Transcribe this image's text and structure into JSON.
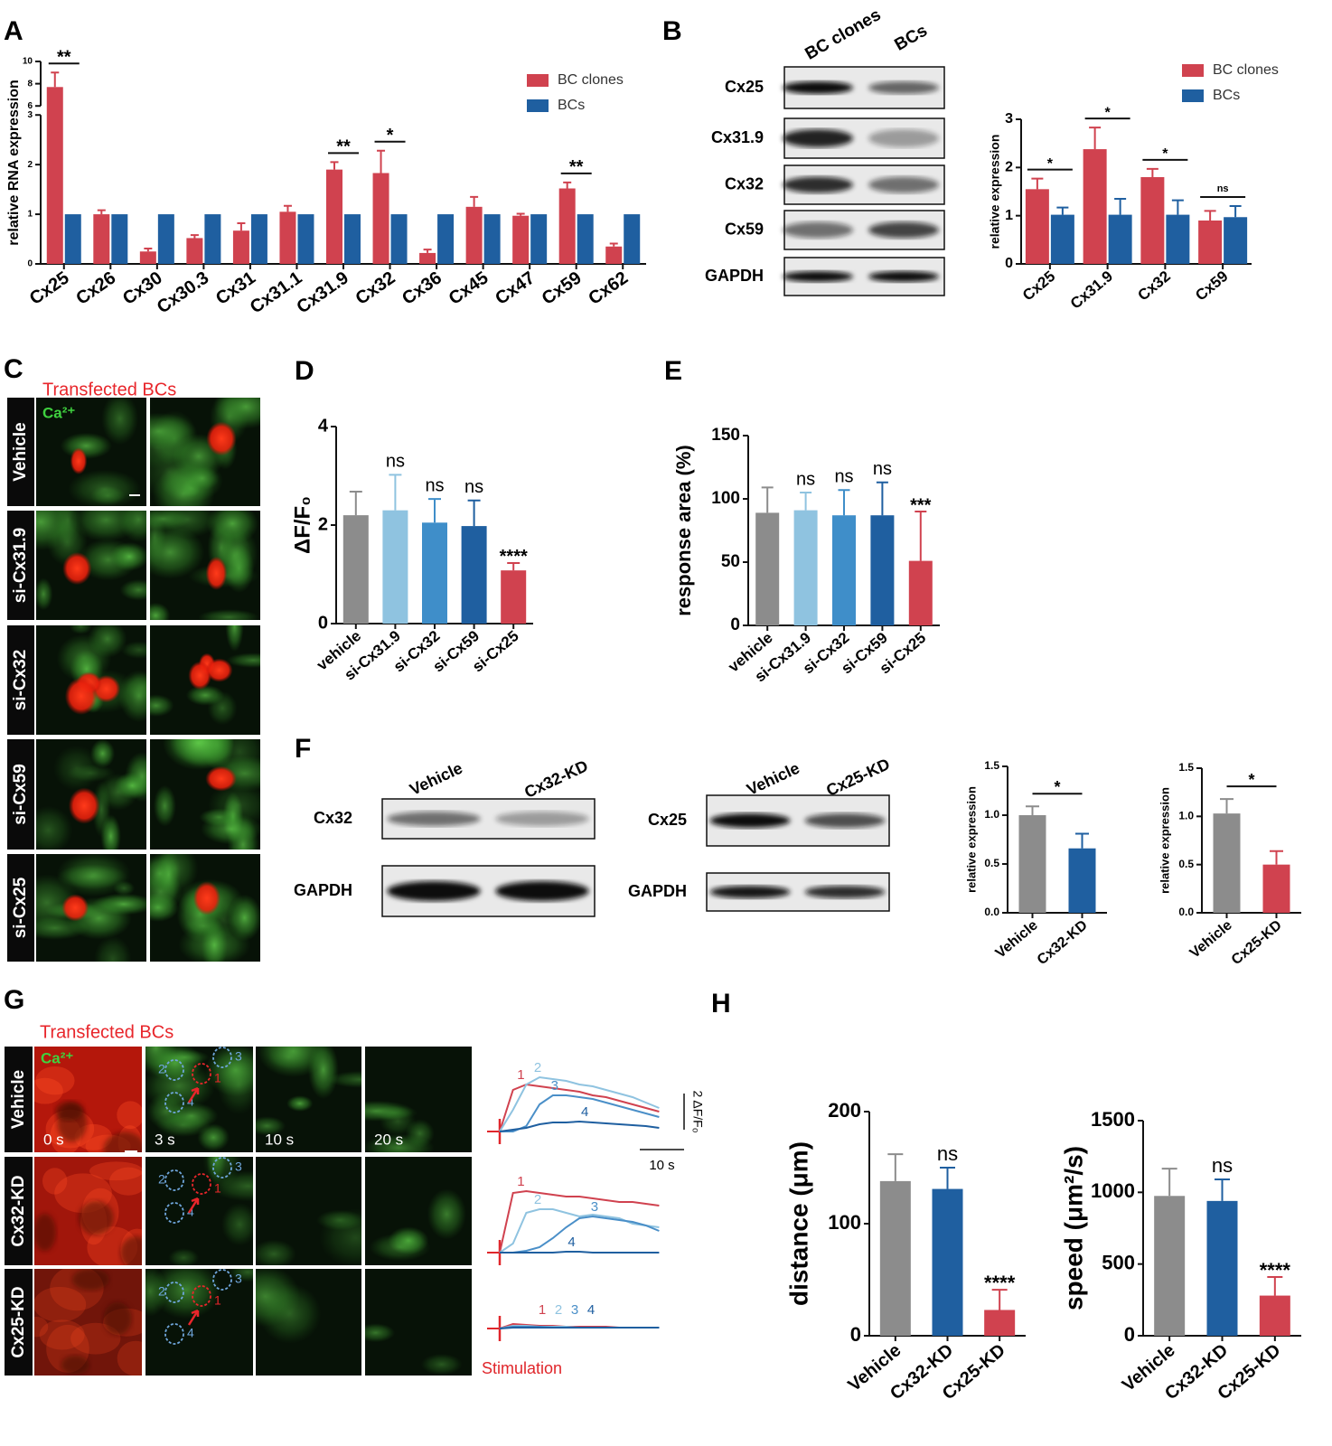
{
  "panels": [
    "A",
    "B",
    "C",
    "D",
    "E",
    "F",
    "G",
    "H"
  ],
  "blots": [
    {
      "lanes": [
        "BC clones",
        "BCs"
      ],
      "rows": [
        "Cx25",
        "Cx31.9",
        "Cx32",
        "Cx59",
        "GAPDH"
      ]
    },
    {
      "lanes": [
        "Vehicle",
        "Cx32-KD"
      ],
      "rows": [
        "Cx32",
        "GAPDH"
      ]
    },
    {
      "lanes": [
        "Vehicle",
        "Cx25-KD"
      ],
      "rows": [
        "Cx25",
        "GAPDH"
      ]
    }
  ],
  "imaging": [
    {
      "title": "Transfected BCs",
      "channel": "Ca²⁺",
      "rows": [
        "Vehicle",
        "si-Cx31.9",
        "si-Cx32",
        "si-Cx59",
        "si-Cx25"
      ]
    },
    {
      "title": "Transfected BCs",
      "channel": "Ca²⁺",
      "rows": [
        "Vehicle",
        "Cx32-KD",
        "Cx25-KD"
      ],
      "times": [
        "0 s",
        "3 s",
        "10 s",
        "20 s"
      ],
      "rois": [
        "1",
        "2",
        "3",
        "4"
      ]
    }
  ],
  "chart_data": [
    {
      "type": "bar",
      "ylabel": "relative RNA expression",
      "categories": [
        "Cx25",
        "Cx26",
        "Cx30",
        "Cx30.3",
        "Cx31",
        "Cx31.1",
        "Cx31.9",
        "Cx32",
        "Cx36",
        "Cx45",
        "Cx47",
        "Cx59",
        "Cx62"
      ],
      "series": [
        {
          "name": "BC clones",
          "color": "#d0424f",
          "values": [
            7.7,
            1.0,
            0.25,
            0.52,
            0.67,
            1.05,
            1.9,
            1.83,
            0.22,
            1.15,
            0.97,
            1.52,
            0.35
          ],
          "errors": [
            1.3,
            0.08,
            0.06,
            0.06,
            0.15,
            0.12,
            0.15,
            0.45,
            0.07,
            0.2,
            0.04,
            0.12,
            0.06
          ]
        },
        {
          "name": "BCs",
          "color": "#1f5fa0",
          "values": [
            1,
            1,
            1,
            1,
            1,
            1,
            1,
            1,
            1,
            1,
            1,
            1,
            1
          ]
        }
      ],
      "ylim": [
        0,
        10
      ],
      "ybreak": [
        3,
        6
      ],
      "yticks": [
        0,
        1,
        2,
        3,
        6,
        8,
        10
      ],
      "significance": [
        "**",
        null,
        null,
        null,
        null,
        null,
        "**",
        "*",
        null,
        null,
        null,
        "**",
        null
      ],
      "significance_style": "bracket",
      "legend": "upper right"
    },
    {
      "type": "bar",
      "ylabel": "relative expression",
      "categories": [
        "Cx25",
        "Cx31.9",
        "Cx32",
        "Cx59"
      ],
      "series": [
        {
          "name": "BC clones",
          "color": "#d0424f",
          "values": [
            1.55,
            2.38,
            1.8,
            0.9
          ],
          "errors": [
            0.22,
            0.45,
            0.17,
            0.2
          ]
        },
        {
          "name": "BCs",
          "color": "#1f5fa0",
          "values": [
            1.02,
            1.02,
            1.02,
            0.97
          ],
          "errors": [
            0.15,
            0.33,
            0.3,
            0.23
          ]
        }
      ],
      "ylim": [
        0,
        3
      ],
      "yticks": [
        0,
        1,
        2,
        3
      ],
      "significance": [
        "*",
        "*",
        "*",
        "ns"
      ],
      "significance_style": "bracket",
      "legend": "upper right"
    },
    {
      "type": "bar",
      "ylabel": "ΔF/F₀",
      "categories": [
        "vehicle",
        "si-Cx31.9",
        "si-Cx32",
        "si-Cx59",
        "si-Cx25"
      ],
      "series": [
        {
          "colors": [
            "#8c8c8c",
            "#8fc3e0",
            "#3f8ec9",
            "#1f5fa0",
            "#d0424f"
          ],
          "values": [
            2.2,
            2.3,
            2.05,
            1.98,
            1.08
          ],
          "errors": [
            0.48,
            0.72,
            0.48,
            0.52,
            0.15
          ]
        }
      ],
      "ylim": [
        0,
        4
      ],
      "yticks": [
        0,
        2,
        4
      ],
      "significance": [
        null,
        "ns",
        "ns",
        "ns",
        "****"
      ],
      "significance_style": "text"
    },
    {
      "type": "bar",
      "ylabel": "response area (%)",
      "categories": [
        "vehicle",
        "si-Cx31.9",
        "si-Cx32",
        "si-Cx59",
        "si-Cx25"
      ],
      "series": [
        {
          "colors": [
            "#8c8c8c",
            "#8fc3e0",
            "#3f8ec9",
            "#1f5fa0",
            "#d0424f"
          ],
          "values": [
            89,
            91,
            87,
            87,
            51
          ],
          "errors": [
            20,
            14,
            20,
            26,
            39
          ]
        }
      ],
      "ylim": [
        0,
        150
      ],
      "yticks": [
        0,
        50,
        100,
        150
      ],
      "significance": [
        null,
        "ns",
        "ns",
        "ns",
        "***"
      ],
      "significance_style": "text"
    },
    {
      "type": "bar",
      "ylabel": "relative expression",
      "categories": [
        "Vehicle",
        "Cx32-KD"
      ],
      "series": [
        {
          "colors": [
            "#8c8c8c",
            "#1f5fa0"
          ],
          "values": [
            1.0,
            0.66
          ],
          "errors": [
            0.09,
            0.15
          ]
        }
      ],
      "ylim": [
        0,
        1.5
      ],
      "yticks": [
        {
          "value": 0,
          "label": "0.0"
        },
        0.5,
        {
          "value": 1,
          "label": "1.0"
        },
        1.5
      ],
      "bracket_label": "*"
    },
    {
      "type": "bar",
      "ylabel": "relative expression",
      "categories": [
        "Vehicle",
        "Cx25-KD"
      ],
      "series": [
        {
          "colors": [
            "#8c8c8c",
            "#d0424f"
          ],
          "values": [
            1.03,
            0.5
          ],
          "errors": [
            0.15,
            0.14
          ]
        }
      ],
      "ylim": [
        0,
        1.5
      ],
      "yticks": [
        {
          "value": 0,
          "label": "0.0"
        },
        0.5,
        {
          "value": 1,
          "label": "1.0"
        },
        1.5
      ],
      "bracket_label": "*"
    },
    {
      "type": "bar",
      "ylabel": "distance (μm)",
      "categories": [
        "Vehicle",
        "Cx32-KD",
        "Cx25-KD"
      ],
      "series": [
        {
          "colors": [
            "#8c8c8c",
            "#1f5fa0",
            "#d0424f"
          ],
          "values": [
            138,
            131,
            23
          ],
          "errors": [
            24,
            19,
            18
          ]
        }
      ],
      "ylim": [
        0,
        200
      ],
      "yticks": [
        0,
        100,
        200
      ],
      "significance": [
        null,
        "ns",
        "****"
      ],
      "significance_style": "text"
    },
    {
      "type": "bar",
      "ylabel": "speed (μm²/s)",
      "categories": [
        "Vehicle",
        "Cx32-KD",
        "Cx25-KD"
      ],
      "series": [
        {
          "colors": [
            "#8c8c8c",
            "#1f5fa0",
            "#d0424f"
          ],
          "values": [
            975,
            940,
            280
          ],
          "errors": [
            190,
            150,
            130
          ]
        }
      ],
      "ylim": [
        0,
        1500
      ],
      "yticks": [
        0,
        500,
        1000,
        1500
      ],
      "significance": [
        null,
        "ns",
        "****"
      ],
      "significance_style": "text"
    },
    {
      "type": "line",
      "x": [
        0,
        3,
        6,
        9,
        12,
        15,
        18,
        21,
        24,
        27,
        30,
        33,
        36
      ],
      "series": [
        {
          "name": "1",
          "color": "#d0424f",
          "values": [
            0,
            2.3,
            2.6,
            2.5,
            2.4,
            2.3,
            2.2,
            2.0,
            1.9,
            1.7,
            1.5,
            1.3,
            1.1
          ]
        },
        {
          "name": "2",
          "color": "#8fc3e0",
          "values": [
            0,
            1.2,
            2.6,
            3.0,
            2.9,
            2.8,
            2.6,
            2.5,
            2.3,
            2.1,
            1.9,
            1.6,
            1.3
          ]
        },
        {
          "name": "3",
          "color": "#4a8fc8",
          "values": [
            0,
            0,
            0.3,
            1.5,
            2.0,
            2.0,
            1.9,
            1.8,
            1.6,
            1.4,
            1.2,
            1.0,
            0.8
          ]
        },
        {
          "name": "4",
          "color": "#1f5fa0",
          "values": [
            0,
            0.1,
            0.2,
            0.4,
            0.5,
            0.5,
            0.55,
            0.5,
            0.45,
            0.4,
            0.35,
            0.3,
            0.2
          ]
        }
      ],
      "scalebar": {
        "x": {
          "value": 10,
          "label": "10 s"
        },
        "y": {
          "value": 2,
          "label": "2 ΔF/F₀"
        }
      }
    },
    {
      "type": "line",
      "x": [
        0,
        3,
        6,
        9,
        12,
        15,
        18,
        21,
        24,
        27,
        30,
        33,
        36
      ],
      "series": [
        {
          "name": "1",
          "color": "#d0424f",
          "values": [
            0,
            3.3,
            3.4,
            3.3,
            3.2,
            3.1,
            3.1,
            3.0,
            2.9,
            2.8,
            2.8,
            2.7,
            2.6
          ]
        },
        {
          "name": "2",
          "color": "#8fc3e0",
          "values": [
            0,
            0.5,
            2.2,
            2.4,
            2.4,
            2.2,
            2.0,
            2.1,
            2.0,
            1.9,
            1.6,
            1.5,
            1.4
          ]
        },
        {
          "name": "3",
          "color": "#4a8fc8",
          "values": [
            0,
            0,
            0.1,
            0.3,
            0.8,
            1.4,
            1.9,
            2.0,
            1.9,
            1.8,
            1.7,
            1.5,
            1.2
          ]
        },
        {
          "name": "4",
          "color": "#1f5fa0",
          "values": [
            0,
            0,
            0,
            0,
            0,
            0.05,
            0.05,
            0,
            0,
            0,
            0,
            0,
            0
          ]
        }
      ]
    },
    {
      "type": "line",
      "x": [
        0,
        3,
        6,
        9,
        12,
        15,
        18,
        21,
        24,
        27,
        30,
        33,
        36
      ],
      "series": [
        {
          "name": "1",
          "color": "#d0424f",
          "values": [
            0,
            0.25,
            0.2,
            0.15,
            0.15,
            0.1,
            0.1,
            0.1,
            0.1,
            0.05,
            0.05,
            0.05,
            0.05
          ]
        },
        {
          "name": "2",
          "color": "#8fc3e0",
          "values": [
            0,
            0.15,
            0.15,
            0.1,
            0.1,
            0.1,
            0.05,
            0.05,
            0.05,
            0.05,
            0.05,
            0.05,
            0.05
          ]
        },
        {
          "name": "3",
          "color": "#4a8fc8",
          "values": [
            0,
            0.1,
            0.1,
            0.1,
            0.05,
            0.05,
            0.05,
            0.05,
            0.05,
            0.05,
            0.05,
            0.05,
            0.05
          ]
        },
        {
          "name": "4",
          "color": "#1f5fa0",
          "values": [
            0,
            0.05,
            0.05,
            0.05,
            0.05,
            0.05,
            0.05,
            0.05,
            0.05,
            0.05,
            0.05,
            0.05,
            0.05
          ]
        }
      ],
      "annotation": "Stimulation"
    }
  ]
}
